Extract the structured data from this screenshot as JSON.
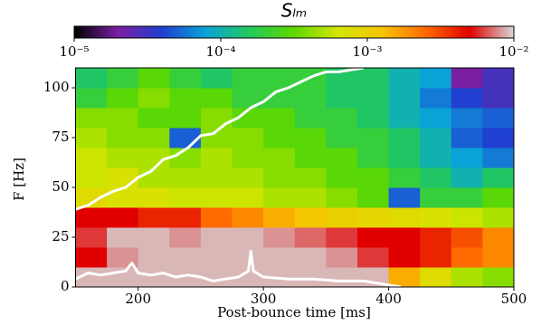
{
  "chart_data": {
    "type": "heatmap",
    "title": "Sₗₘ",
    "xlabel": "Post-bounce time [ms]",
    "ylabel": "F [Hz]",
    "xlim": [
      150,
      500
    ],
    "xticks": [
      200,
      300,
      400,
      500
    ],
    "ylim": [
      0,
      110
    ],
    "yticks": [
      0,
      25,
      50,
      75,
      100
    ],
    "clim": [
      1e-05,
      0.01
    ],
    "color_scale": "log",
    "cticks": [
      {
        "value": 1e-05,
        "label": "10⁻⁵"
      },
      {
        "value": 0.0001,
        "label": "10⁻⁴"
      },
      {
        "value": 0.001,
        "label": "10⁻³"
      },
      {
        "value": 0.01,
        "label": "10⁻²"
      }
    ],
    "colormap": [
      "#000000",
      "#7a1fa2",
      "#1f3fd0",
      "#0aa3d8",
      "#22c95a",
      "#5fd800",
      "#d4e600",
      "#f5c400",
      "#ff6a00",
      "#e00000",
      "#d8d8d8"
    ],
    "x_bins": [
      150,
      175,
      200,
      225,
      250,
      275,
      300,
      325,
      350,
      375,
      400,
      425,
      450,
      475,
      500
    ],
    "y_bins": [
      0,
      10,
      20,
      30,
      40,
      50,
      60,
      70,
      80,
      90,
      100,
      110
    ],
    "z": [
      [
        0.009,
        0.009,
        0.009,
        0.009,
        0.009,
        0.009,
        0.009,
        0.009,
        0.009,
        0.009,
        0.0015,
        0.0008,
        0.0005,
        0.0004
      ],
      [
        0.005,
        0.008,
        0.009,
        0.009,
        0.009,
        0.009,
        0.009,
        0.009,
        0.008,
        0.006,
        0.005,
        0.004,
        0.0025,
        0.002
      ],
      [
        0.006,
        0.009,
        0.009,
        0.008,
        0.009,
        0.009,
        0.008,
        0.007,
        0.006,
        0.005,
        0.005,
        0.004,
        0.003,
        0.002
      ],
      [
        0.005,
        0.005,
        0.004,
        0.004,
        0.0025,
        0.002,
        0.0015,
        0.0012,
        0.001,
        0.0009,
        0.0008,
        0.0007,
        0.0006,
        0.0005
      ],
      [
        0.0008,
        0.0007,
        0.0007,
        0.0006,
        0.0006,
        0.0006,
        0.0005,
        0.0005,
        0.0004,
        0.0003,
        5e-05,
        0.0002,
        0.0002,
        0.0003
      ],
      [
        0.0006,
        0.0007,
        0.0005,
        0.0005,
        0.0005,
        0.0005,
        0.0004,
        0.0004,
        0.0003,
        0.0003,
        0.0002,
        0.00015,
        0.0001,
        0.00015
      ],
      [
        0.0006,
        0.0005,
        0.0005,
        0.0004,
        0.0005,
        0.0004,
        0.0004,
        0.0003,
        0.0003,
        0.0002,
        0.00015,
        0.0001,
        8e-05,
        6e-05
      ],
      [
        0.0005,
        0.0004,
        0.0004,
        5e-05,
        0.0004,
        0.0004,
        0.0003,
        0.0003,
        0.0002,
        0.0002,
        0.00015,
        0.0001,
        5e-05,
        4e-05
      ],
      [
        0.0004,
        0.0004,
        0.0003,
        0.0003,
        0.0004,
        0.0003,
        0.0003,
        0.0002,
        0.0002,
        0.00015,
        0.0001,
        8e-05,
        6e-05,
        5e-05
      ],
      [
        0.0002,
        0.0003,
        0.0004,
        0.0003,
        0.0003,
        0.0002,
        0.0002,
        0.0002,
        0.00015,
        0.00015,
        0.0001,
        6e-05,
        4e-05,
        3e-05
      ],
      [
        0.00015,
        0.0002,
        0.0003,
        0.0002,
        0.00015,
        0.0002,
        0.0002,
        0.0002,
        0.00015,
        0.00015,
        0.0001,
        8e-05,
        2e-05,
        3e-05
      ]
    ],
    "lines": [
      {
        "color": "#ffffff",
        "x": [
          150,
          160,
          170,
          180,
          190,
          200,
          210,
          220,
          230,
          240,
          250,
          260,
          270,
          280,
          290,
          300,
          310,
          320,
          330,
          340,
          350,
          360,
          370,
          380
        ],
        "values": [
          39,
          41,
          45,
          48,
          50,
          55,
          58,
          64,
          66,
          70,
          76,
          77,
          82,
          85,
          90,
          93,
          98,
          100,
          103,
          106,
          108,
          108,
          109,
          110
        ]
      },
      {
        "color": "#ffffff",
        "x": [
          150,
          160,
          170,
          180,
          190,
          195,
          200,
          210,
          220,
          230,
          240,
          250,
          260,
          270,
          280,
          288,
          290,
          292,
          300,
          320,
          340,
          360,
          380,
          400,
          410
        ],
        "values": [
          4,
          7,
          6,
          7,
          8,
          12,
          7,
          6,
          7,
          5,
          6,
          5,
          3,
          4,
          5,
          8,
          18,
          8,
          5,
          4,
          4,
          3,
          3,
          1,
          0
        ]
      }
    ]
  }
}
